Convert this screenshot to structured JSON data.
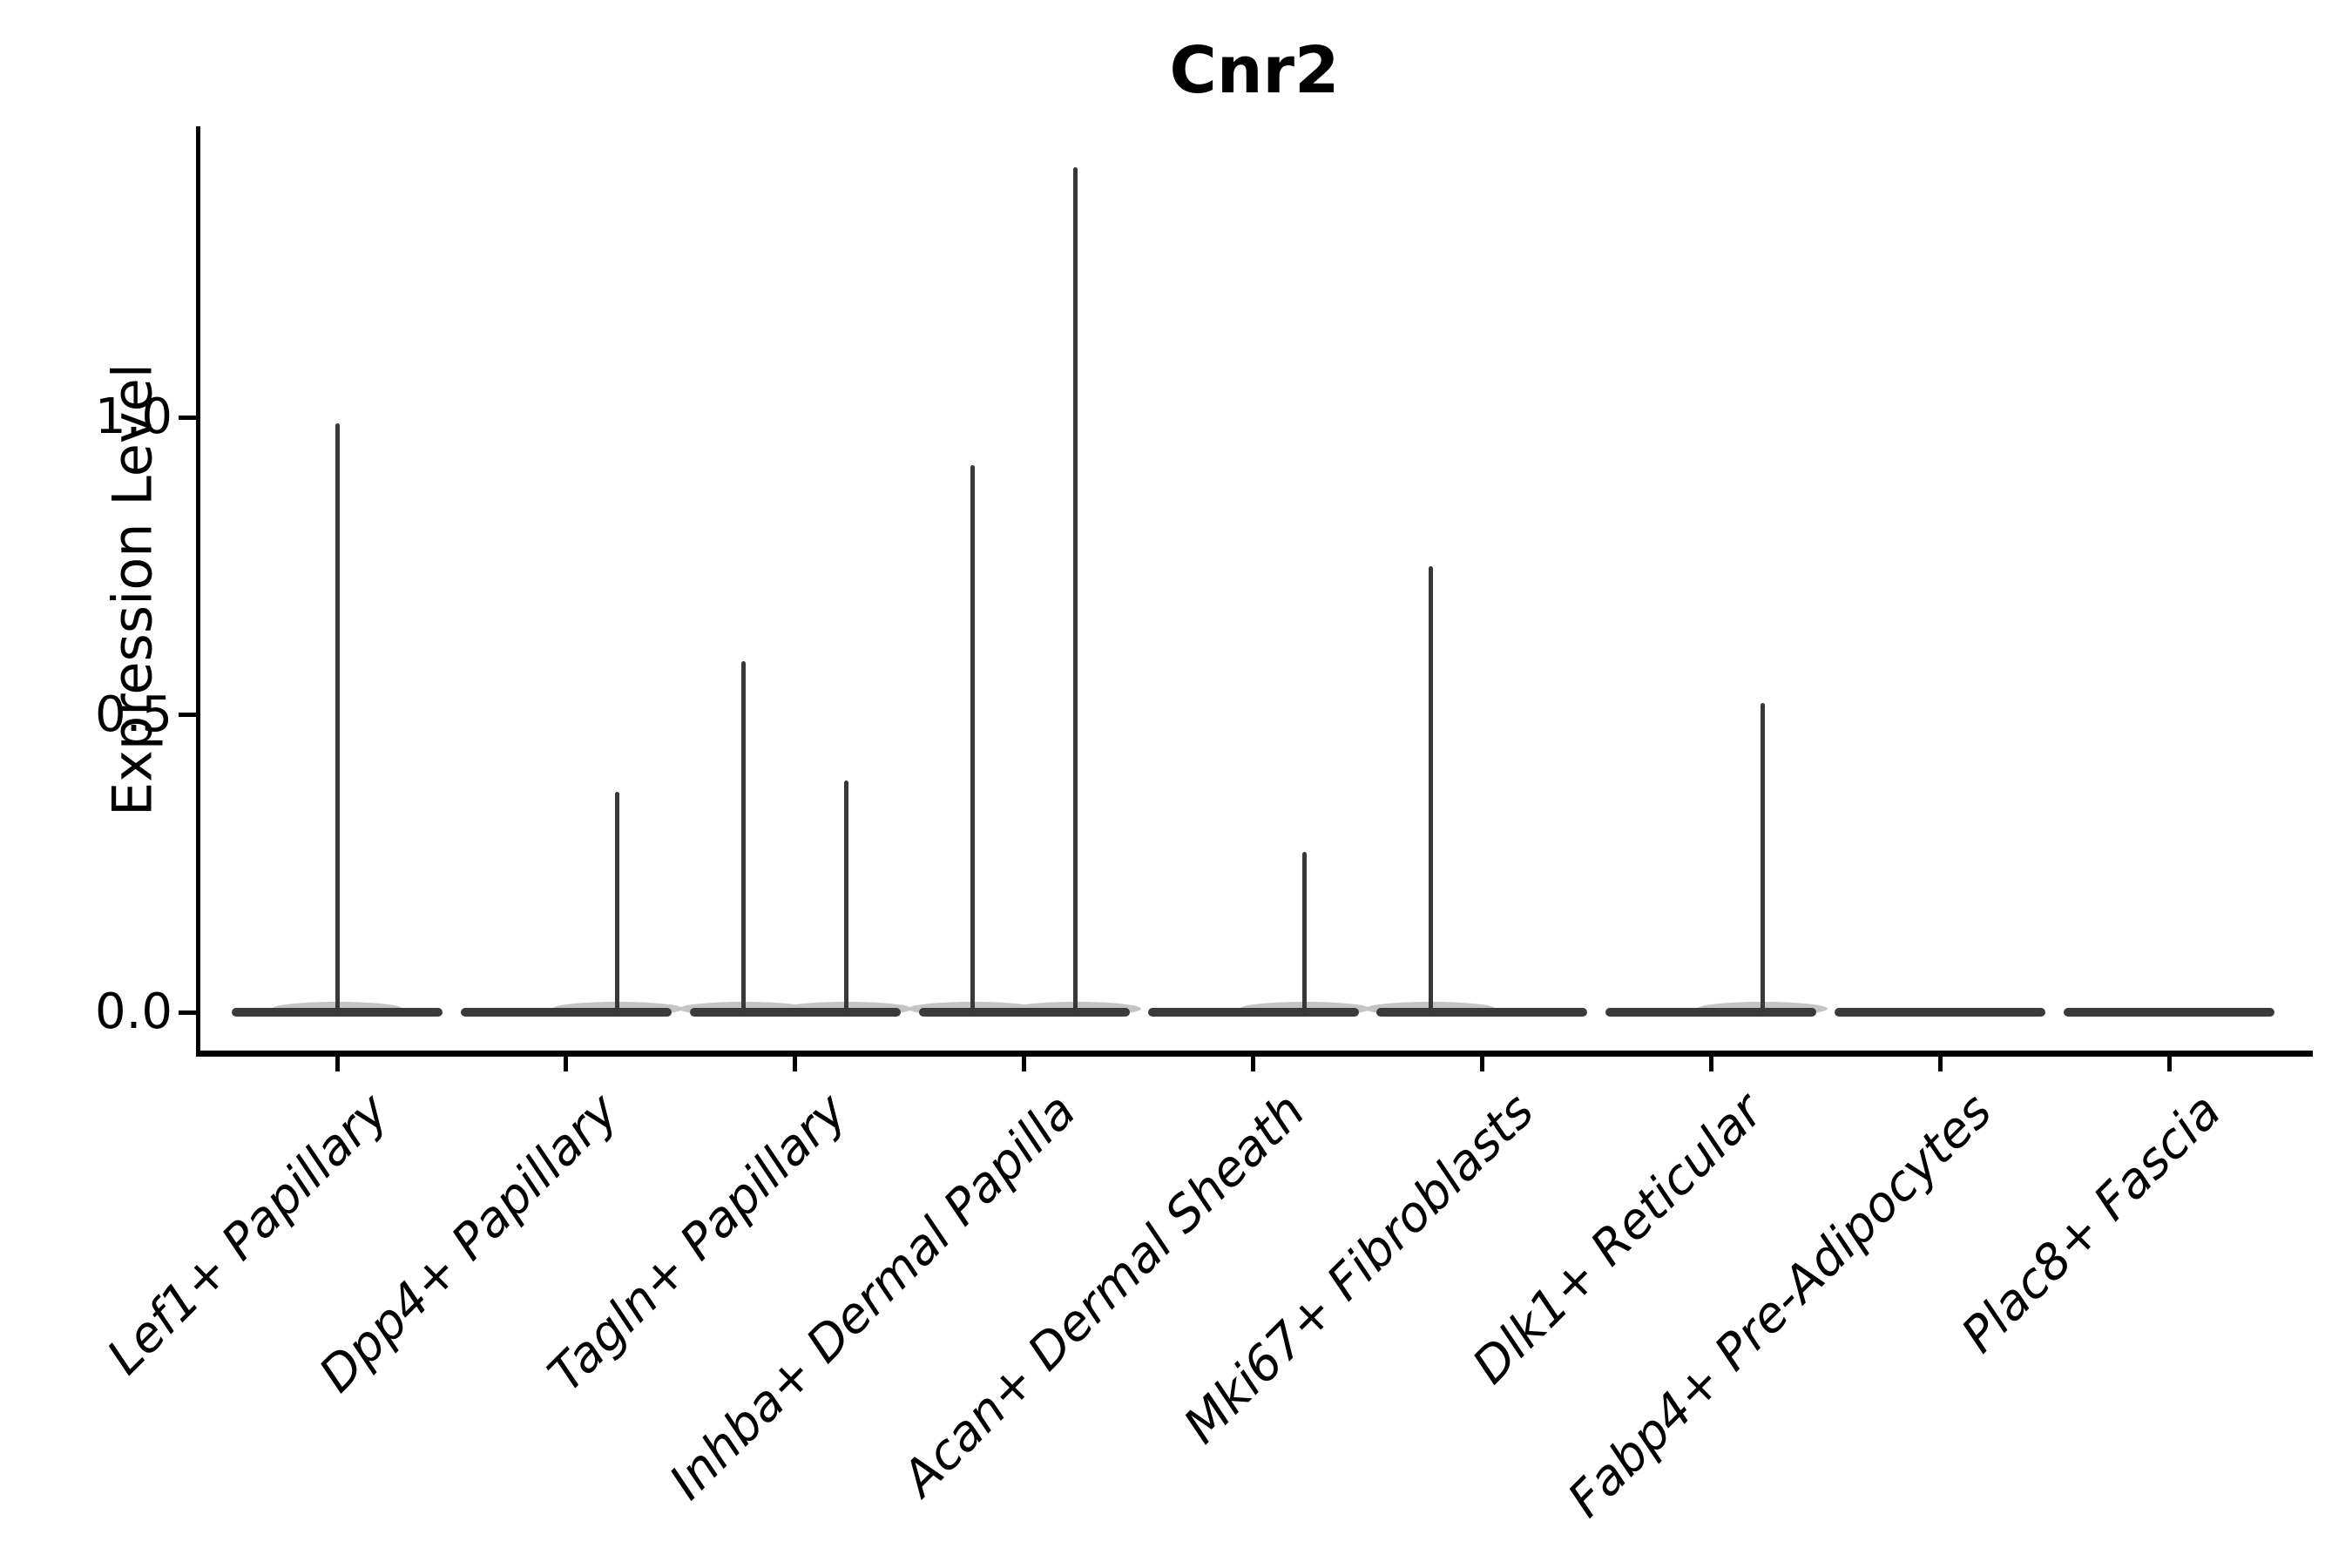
{
  "figure": {
    "title": "Cnr2",
    "ylabel": "Expression Level",
    "background_color": "#ffffff",
    "axis_color": "#000000",
    "violin_color": "#3a3a3a"
  },
  "chart_data": {
    "type": "violin",
    "title": "Cnr2",
    "xlabel": "",
    "ylabel": "Expression Level",
    "ylim": [
      -0.07,
      1.49
    ],
    "y_ticks": [
      {
        "value": 0.0,
        "label": "0.0"
      },
      {
        "value": 0.5,
        "label": "0.5"
      },
      {
        "value": 1.0,
        "label": "1.0"
      }
    ],
    "x_tick_rotation": 45,
    "grid": false,
    "legend": null,
    "categories": [
      "Lef1+ Papillary",
      "Dpp4+ Papillary",
      "Tagln+ Papillary",
      "Inhba+ Dermal Papilla",
      "Acan+ Dermal Sheath",
      "Mki67+ Fibroblasts",
      "Dlk1+ Reticular",
      "Fabp4+ Pre-Adipocytes",
      "Plac8+ Fascia"
    ],
    "violins": [
      {
        "label": "Lef1+ Papillary",
        "baseline": 0.0,
        "spikes": [
          {
            "pos": "center",
            "value": 0.99
          }
        ]
      },
      {
        "label": "Dpp4+ Papillary",
        "baseline": 0.0,
        "spikes": [
          {
            "pos": "right",
            "value": 0.37
          }
        ]
      },
      {
        "label": "Tagln+ Papillary",
        "baseline": 0.0,
        "spikes": [
          {
            "pos": "left",
            "value": 0.59
          },
          {
            "pos": "right",
            "value": 0.39
          }
        ]
      },
      {
        "label": "Inhba+ Dermal Papilla",
        "baseline": 0.0,
        "spikes": [
          {
            "pos": "left",
            "value": 0.92
          },
          {
            "pos": "right",
            "value": 1.42
          }
        ]
      },
      {
        "label": "Acan+ Dermal Sheath",
        "baseline": 0.0,
        "spikes": [
          {
            "pos": "right",
            "value": 0.27
          }
        ]
      },
      {
        "label": "Mki67+ Fibroblasts",
        "baseline": 0.0,
        "spikes": [
          {
            "pos": "left",
            "value": 0.75
          }
        ]
      },
      {
        "label": "Dlk1+ Reticular",
        "baseline": 0.0,
        "spikes": [
          {
            "pos": "right",
            "value": 0.52
          }
        ]
      },
      {
        "label": "Fabp4+ Pre-Adipocytes",
        "baseline": 0.0,
        "spikes": []
      },
      {
        "label": "Plac8+ Fascia",
        "baseline": 0.0,
        "spikes": []
      }
    ]
  }
}
